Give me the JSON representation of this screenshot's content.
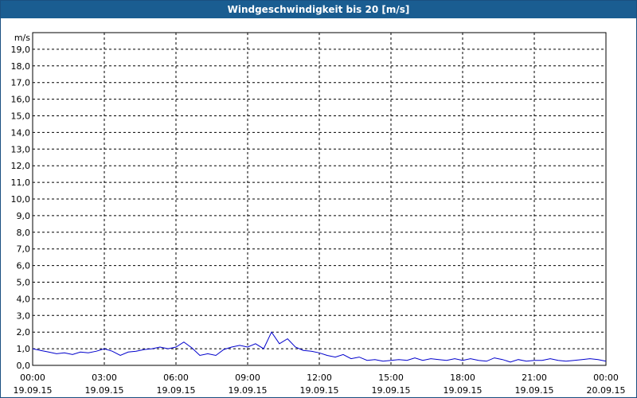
{
  "chart_data": {
    "type": "line",
    "title": "Windgeschwindigkeit bis 20 [m/s]",
    "ylabel": "m/s",
    "xlabel": "",
    "ylim": [
      0,
      20
    ],
    "xlim": [
      0,
      24
    ],
    "grid": true,
    "line_color": "#0000cc",
    "y_ticks": [
      "0,0",
      "1,0",
      "2,0",
      "3,0",
      "4,0",
      "5,0",
      "6,0",
      "7,0",
      "8,0",
      "9,0",
      "10,0",
      "11,0",
      "12,0",
      "13,0",
      "14,0",
      "15,0",
      "16,0",
      "17,0",
      "18,0",
      "19,0"
    ],
    "x_ticks": [
      {
        "time": "00:00",
        "date": "19.09.15"
      },
      {
        "time": "03:00",
        "date": "19.09.15"
      },
      {
        "time": "06:00",
        "date": "19.09.15"
      },
      {
        "time": "09:00",
        "date": "19.09.15"
      },
      {
        "time": "12:00",
        "date": "19.09.15"
      },
      {
        "time": "15:00",
        "date": "19.09.15"
      },
      {
        "time": "18:00",
        "date": "19.09.15"
      },
      {
        "time": "21:00",
        "date": "19.09.15"
      },
      {
        "time": "00:00",
        "date": "20.09.15"
      }
    ],
    "series": [
      {
        "x": [
          0,
          0.33,
          0.67,
          1,
          1.33,
          1.67,
          2,
          2.33,
          2.67,
          3,
          3.33,
          3.67,
          4,
          4.33,
          4.67,
          5,
          5.33,
          5.67,
          6,
          6.33,
          6.67,
          7,
          7.33,
          7.67,
          8,
          8.33,
          8.67,
          9,
          9.33,
          9.67,
          10,
          10.33,
          10.67,
          11,
          11.33,
          11.67,
          12,
          12.33,
          12.67,
          13,
          13.33,
          13.67,
          14,
          14.33,
          14.67,
          15,
          15.33,
          15.67,
          16,
          16.33,
          16.67,
          17,
          17.33,
          17.67,
          18,
          18.33,
          18.67,
          19,
          19.33,
          19.67,
          20,
          20.33,
          20.67,
          21,
          21.33,
          21.67,
          22,
          22.33,
          22.67,
          23,
          23.33,
          23.67,
          24
        ],
        "y": [
          1.0,
          0.9,
          0.8,
          0.7,
          0.75,
          0.65,
          0.8,
          0.75,
          0.85,
          1.0,
          0.85,
          0.6,
          0.8,
          0.85,
          0.95,
          1.0,
          1.1,
          1.0,
          1.1,
          1.4,
          1.05,
          0.6,
          0.7,
          0.6,
          0.95,
          1.1,
          1.2,
          1.1,
          1.3,
          1.0,
          2.0,
          1.3,
          1.6,
          1.1,
          0.9,
          0.85,
          0.75,
          0.6,
          0.5,
          0.65,
          0.4,
          0.5,
          0.3,
          0.35,
          0.25,
          0.3,
          0.35,
          0.3,
          0.45,
          0.3,
          0.4,
          0.35,
          0.3,
          0.4,
          0.3,
          0.4,
          0.3,
          0.25,
          0.45,
          0.35,
          0.2,
          0.35,
          0.25,
          0.3,
          0.3,
          0.4,
          0.3,
          0.25,
          0.3,
          0.35,
          0.4,
          0.35,
          0.25
        ]
      }
    ]
  }
}
